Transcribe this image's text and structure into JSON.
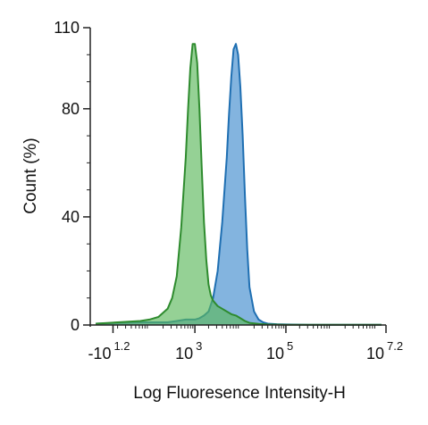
{
  "chart_data": {
    "type": "area",
    "title": "",
    "xlabel": "Log Fluoresence Intensity-H",
    "ylabel": "Count  (%)",
    "x_scale": "log",
    "xlim_log10": [
      0.7,
      7.2
    ],
    "ylim": [
      0,
      110
    ],
    "yticks": [
      {
        "value": 0,
        "label": "0"
      },
      {
        "value": 40,
        "label": "40"
      },
      {
        "value": 80,
        "label": "80"
      },
      {
        "value": 110,
        "label": "110"
      }
    ],
    "xticks": [
      {
        "log10": 1.2,
        "base": "-10",
        "exp": "1.2"
      },
      {
        "log10": 3,
        "base": "10",
        "exp": "3"
      },
      {
        "log10": 5,
        "base": "10",
        "exp": "5"
      },
      {
        "log10": 7.2,
        "base": "10",
        "exp": "7.2"
      }
    ],
    "grid": false,
    "legend": "none",
    "series": [
      {
        "color": "#1f6fb2",
        "fill": "#5a9bd4",
        "fill_opacity": 0.75,
        "x_log10": [
          0.82,
          1.3,
          1.8,
          2.2,
          2.4,
          2.6,
          2.8,
          3.0,
          3.1,
          3.2,
          3.3,
          3.4,
          3.5,
          3.6,
          3.7,
          3.75,
          3.8,
          3.85,
          3.9,
          3.95,
          4.0,
          4.05,
          4.1,
          4.15,
          4.2,
          4.3,
          4.4,
          4.5,
          4.6,
          4.8,
          5.0,
          5.5,
          6.0,
          6.5,
          7.1
        ],
        "y": [
          0.5,
          0.8,
          1,
          1,
          1,
          1.5,
          2,
          2,
          2.5,
          3.5,
          5,
          10,
          20,
          38,
          62,
          78,
          92,
          102,
          104,
          100,
          88,
          70,
          48,
          28,
          14,
          5,
          2,
          1,
          0.5,
          0.3,
          0.2,
          0.1,
          0.1,
          0.1,
          0.1
        ]
      },
      {
        "color": "#2e8b2e",
        "fill": "#5cb85c",
        "fill_opacity": 0.65,
        "x_log10": [
          0.82,
          1.3,
          1.8,
          2.0,
          2.2,
          2.4,
          2.5,
          2.6,
          2.7,
          2.8,
          2.85,
          2.9,
          2.95,
          3.0,
          3.05,
          3.1,
          3.15,
          3.2,
          3.25,
          3.3,
          3.35,
          3.4,
          3.5,
          3.6,
          3.7,
          3.8,
          3.9,
          4.0,
          4.1,
          4.2,
          4.4,
          4.6,
          5.0,
          5.5,
          6.0,
          6.5,
          7.1
        ],
        "y": [
          0.5,
          1,
          1.5,
          2,
          3,
          6,
          10,
          18,
          36,
          62,
          80,
          95,
          104,
          104,
          97,
          80,
          58,
          38,
          24,
          15,
          11,
          9,
          7,
          6,
          5,
          4,
          3.5,
          2.5,
          1.5,
          0.8,
          0.4,
          0.2,
          0.1,
          0.1,
          0.1,
          0.1,
          0.1
        ]
      }
    ]
  }
}
